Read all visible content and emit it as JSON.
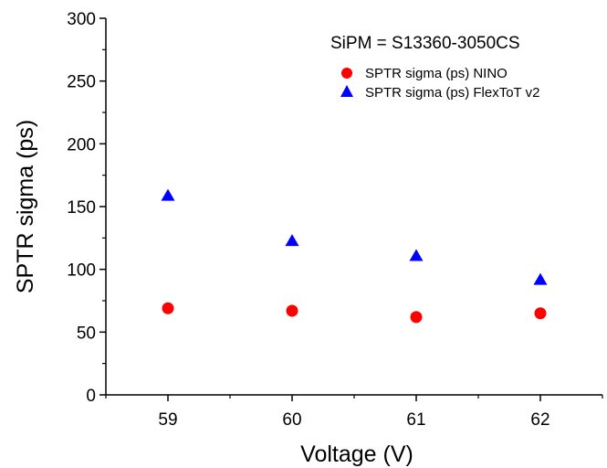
{
  "chart_data": {
    "type": "scatter",
    "title": "",
    "annotation": "SiPM = S13360-3050CS",
    "xlabel": "Voltage (V)",
    "ylabel": "SPTR sigma (ps)",
    "x": [
      59,
      60,
      61,
      62
    ],
    "x_ticks": [
      "59",
      "60",
      "61",
      "62"
    ],
    "xlim": [
      58.5,
      62.5
    ],
    "ylim": [
      0,
      300
    ],
    "y_ticks": [
      0,
      50,
      100,
      150,
      200,
      250,
      300
    ],
    "grid": false,
    "legend_position": "top-right",
    "series": [
      {
        "name": "SPTR sigma (ps) NINO",
        "marker": "circle",
        "color": "#ff0000",
        "values": [
          69,
          67,
          62,
          65
        ]
      },
      {
        "name": "SPTR sigma (ps) FlexToT v2",
        "marker": "triangle",
        "color": "#0000ff",
        "values": [
          159,
          123,
          111,
          92
        ]
      }
    ]
  }
}
